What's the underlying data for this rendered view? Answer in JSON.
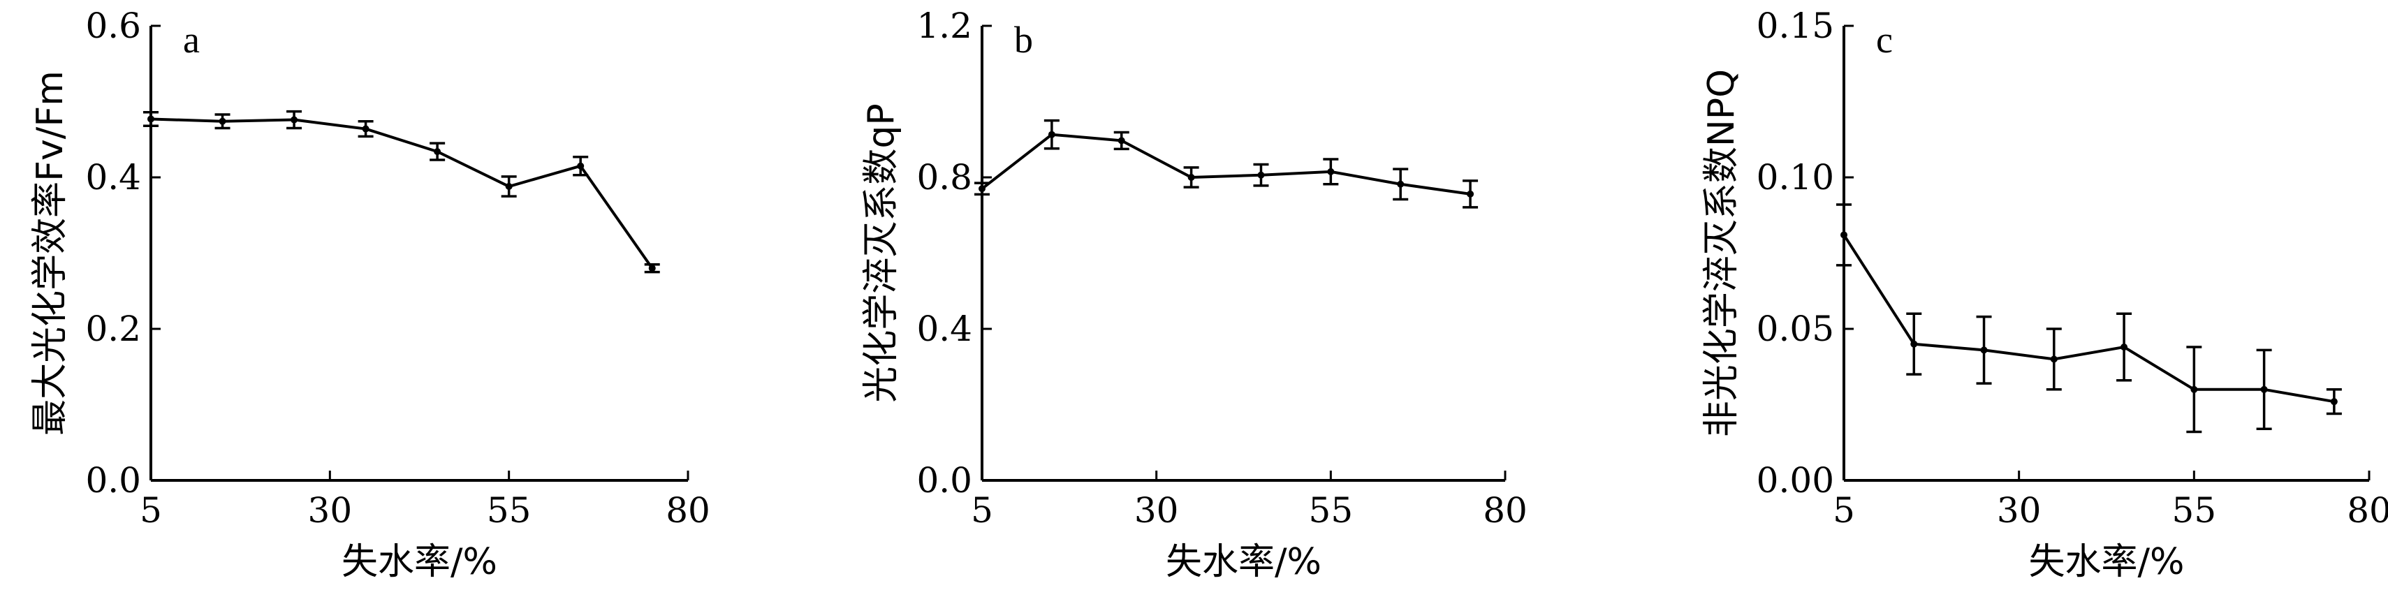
{
  "chart_data": [
    {
      "type": "line",
      "panel_label": "a",
      "xlabel": "失水率/%",
      "ylabel": "最大光化学效率Fv/Fm",
      "x_ticks": [
        5,
        30,
        55,
        80
      ],
      "xlim": [
        5,
        80
      ],
      "y_ticks": [
        "0.0",
        "0.2",
        "0.4",
        "0.6"
      ],
      "ylim": [
        0,
        0.6
      ],
      "x": [
        5,
        15,
        25,
        35,
        45,
        55,
        65,
        75
      ],
      "values": [
        0.477,
        0.474,
        0.476,
        0.464,
        0.434,
        0.388,
        0.415,
        0.28
      ],
      "errors": [
        0.009,
        0.009,
        0.011,
        0.01,
        0.011,
        0.013,
        0.012,
        0.005
      ]
    },
    {
      "type": "line",
      "panel_label": "b",
      "xlabel": "失水率/%",
      "ylabel": "光化学淬灭系数qP",
      "x_ticks": [
        5,
        30,
        55,
        80
      ],
      "xlim": [
        5,
        80
      ],
      "y_ticks": [
        "0.0",
        "0.4",
        "0.8",
        "1.2"
      ],
      "ylim": [
        0,
        1.2
      ],
      "x": [
        5,
        15,
        25,
        35,
        45,
        55,
        65,
        75
      ],
      "values": [
        0.77,
        0.913,
        0.897,
        0.8,
        0.806,
        0.815,
        0.782,
        0.756
      ],
      "errors": [
        0.015,
        0.037,
        0.022,
        0.026,
        0.028,
        0.033,
        0.04,
        0.035
      ]
    },
    {
      "type": "line",
      "panel_label": "c",
      "xlabel": "失水率/%",
      "ylabel": "非光化学淬灭系数NPQ",
      "x_ticks": [
        5,
        30,
        55,
        80
      ],
      "xlim": [
        5,
        80
      ],
      "y_ticks": [
        "0.00",
        "0.05",
        "0.10",
        "0.15"
      ],
      "ylim": [
        0,
        0.15
      ],
      "x": [
        5,
        15,
        25,
        35,
        45,
        55,
        65,
        75
      ],
      "values": [
        0.081,
        0.045,
        0.043,
        0.04,
        0.044,
        0.03,
        0.03,
        0.026
      ],
      "errors": [
        0.01,
        0.01,
        0.011,
        0.01,
        0.011,
        0.014,
        0.013,
        0.004
      ]
    }
  ]
}
